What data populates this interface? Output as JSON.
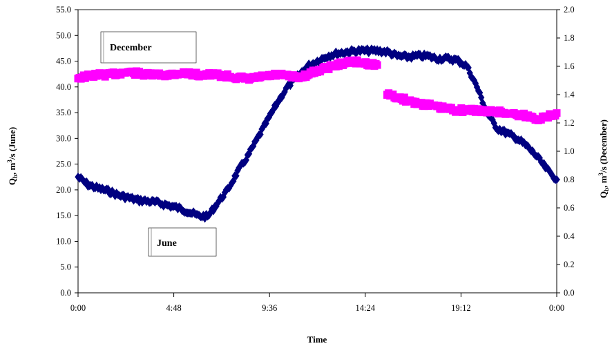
{
  "chart_data": {
    "type": "scatter",
    "xlabel": "Time",
    "ylabel_left_main": "Q",
    "ylabel_left_sub": "b",
    "ylabel_left_rest": ", m",
    "ylabel_left_sup": "3",
    "ylabel_left_end": "/s (June)",
    "ylabel_right_main": "Q",
    "ylabel_right_sub": "b",
    "ylabel_right_rest": ", m",
    "ylabel_right_sup": "3",
    "ylabel_right_end": "/s (December)",
    "x_ticks": [
      "0:00",
      "4:48",
      "9:36",
      "14:24",
      "19:12",
      "0:00"
    ],
    "x_tick_hours": [
      0,
      4.8,
      9.6,
      14.4,
      19.2,
      24
    ],
    "xlim": [
      0,
      24
    ],
    "y_left_ticks": [
      "0.0",
      "5.0",
      "10.0",
      "15.0",
      "20.0",
      "25.0",
      "30.0",
      "35.0",
      "40.0",
      "45.0",
      "50.0",
      "55.0"
    ],
    "y_left_tick_values": [
      0,
      5,
      10,
      15,
      20,
      25,
      30,
      35,
      40,
      45,
      50,
      55
    ],
    "ylim_left": [
      0,
      55
    ],
    "y_right_ticks": [
      "0.0",
      "0.2",
      "0.4",
      "0.6",
      "0.8",
      "1.0",
      "1.2",
      "1.4",
      "1.6",
      "1.8",
      "2.0"
    ],
    "y_right_tick_values": [
      0,
      0.2,
      0.4,
      0.6,
      0.8,
      1.0,
      1.2,
      1.4,
      1.6,
      1.8,
      2.0
    ],
    "ylim_right": [
      0,
      2.0
    ],
    "series": [
      {
        "name": "June",
        "axis": "left",
        "color": "#000080",
        "marker": "diamond",
        "x": [
          0,
          0.5,
          1,
          1.5,
          2,
          2.5,
          3,
          3.5,
          4,
          4.5,
          5,
          5.5,
          6,
          6.5,
          7,
          7.5,
          8,
          8.5,
          9,
          9.5,
          10,
          10.5,
          11,
          11.5,
          12,
          12.5,
          13,
          13.5,
          14,
          14.5,
          15,
          15.5,
          16,
          16.5,
          17,
          17.5,
          18,
          18.5,
          19,
          19.5,
          20,
          20.5,
          21,
          21.5,
          22,
          22.5,
          23,
          23.5,
          24
        ],
        "y": [
          22.5,
          21.0,
          20.3,
          19.8,
          19.0,
          18.5,
          18.0,
          17.8,
          17.5,
          17.0,
          16.5,
          15.8,
          15.0,
          14.8,
          17.5,
          20.0,
          23.5,
          26.5,
          30.0,
          33.5,
          37.0,
          40.0,
          42.0,
          44.0,
          45.0,
          46.0,
          46.5,
          46.8,
          47.0,
          47.0,
          47.0,
          46.8,
          46.0,
          45.8,
          46.0,
          46.0,
          45.5,
          45.5,
          45.2,
          44.0,
          40.0,
          35.0,
          32.0,
          31.0,
          30.0,
          28.5,
          26.5,
          24.0,
          22.0
        ]
      },
      {
        "name": "December",
        "axis": "right",
        "color": "#ff00ff",
        "marker": "square",
        "x": [
          0,
          0.5,
          1,
          1.5,
          2,
          2.5,
          3,
          3.5,
          4,
          4.5,
          5,
          5.5,
          6,
          6.5,
          7,
          7.5,
          8,
          8.5,
          9,
          9.5,
          10,
          10.5,
          11,
          11.5,
          12,
          12.5,
          13,
          13.5,
          14,
          14.5,
          15,
          15.5,
          16,
          16.5,
          17,
          17.5,
          18,
          18.5,
          19,
          19.5,
          20,
          20.5,
          21,
          21.5,
          22,
          22.5,
          23,
          23.5,
          24
        ],
        "y": [
          1.52,
          1.53,
          1.54,
          1.54,
          1.55,
          1.56,
          1.55,
          1.54,
          1.54,
          1.54,
          1.55,
          1.55,
          1.54,
          1.54,
          1.54,
          1.53,
          1.52,
          1.51,
          1.52,
          1.53,
          1.54,
          1.53,
          1.52,
          1.54,
          1.57,
          1.59,
          1.61,
          1.63,
          1.63,
          1.62,
          1.61,
          1.4,
          1.38,
          1.36,
          1.34,
          1.33,
          1.31,
          1.3,
          1.29,
          1.29,
          1.29,
          1.28,
          1.28,
          1.27,
          1.26,
          1.25,
          1.23,
          1.24,
          1.27
        ]
      }
    ],
    "annotations": [
      "December",
      "June"
    ],
    "grid": false,
    "legend": "none"
  }
}
